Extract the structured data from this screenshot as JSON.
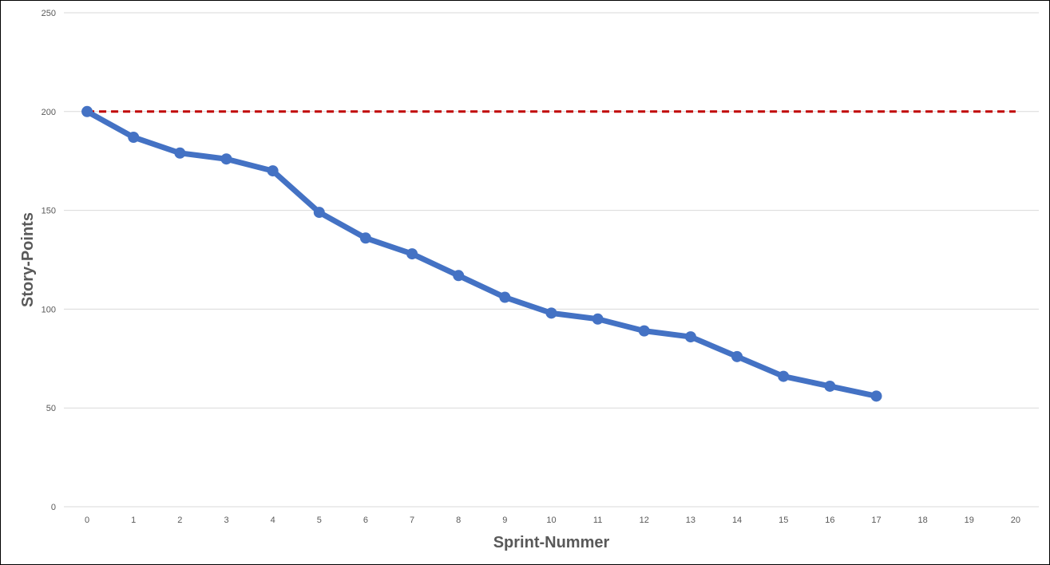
{
  "chart_data": {
    "type": "line",
    "xlabel": "Sprint-Nummer",
    "ylabel": "Story-Points",
    "x_categories": [
      "0",
      "1",
      "2",
      "3",
      "4",
      "5",
      "6",
      "7",
      "8",
      "9",
      "10",
      "11",
      "12",
      "13",
      "14",
      "15",
      "16",
      "17",
      "18",
      "19",
      "20"
    ],
    "ylim": [
      0,
      250
    ],
    "yticks": [
      0,
      50,
      100,
      150,
      200,
      250
    ],
    "grid": true,
    "legend": "none",
    "series": [
      {
        "style": "solid-line-markers",
        "color": "#4472C4",
        "x": [
          0,
          1,
          2,
          3,
          4,
          5,
          6,
          7,
          8,
          9,
          10,
          11,
          12,
          13,
          14,
          15,
          16,
          17
        ],
        "values": [
          200,
          187,
          179,
          176,
          170,
          149,
          136,
          128,
          117,
          106,
          98,
          95,
          89,
          86,
          76,
          66,
          61,
          56
        ]
      },
      {
        "style": "dashed-line",
        "color": "#C00000",
        "x": [
          0,
          20
        ],
        "values": [
          200,
          200
        ]
      }
    ]
  }
}
